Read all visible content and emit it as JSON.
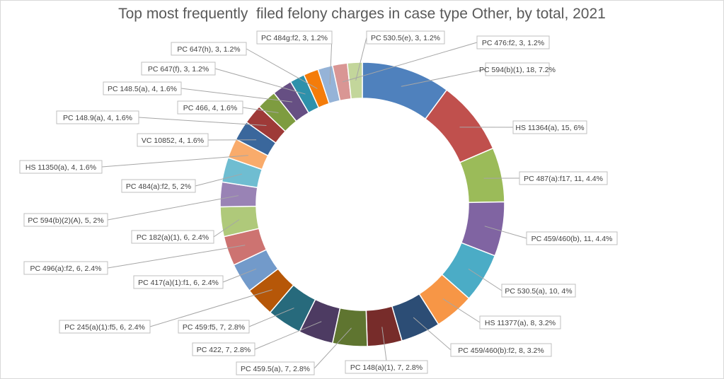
{
  "chart_data": {
    "type": "pie",
    "subtype": "doughnut",
    "title": "Top most frequently  filed felony charges in case type Other, by total, 2021",
    "slices": [
      {
        "label": "PC  594(b)(1), 18, 7.2%",
        "value": 18,
        "color": "#4f81bd"
      },
      {
        "label": "HS  11364(a), 15, 6%",
        "value": 15,
        "color": "#c0504d"
      },
      {
        "label": "PC  487(a):f17, 11, 4.4%",
        "value": 11,
        "color": "#9bbb59"
      },
      {
        "label": "PC  459/460(b), 11, 4.4%",
        "value": 11,
        "color": "#8064a2"
      },
      {
        "label": "PC  530.5(a), 10, 4%",
        "value": 10,
        "color": "#4bacc6"
      },
      {
        "label": "HS  11377(a), 8, 3.2%",
        "value": 8,
        "color": "#f79646"
      },
      {
        "label": "PC  459/460(b):f2, 8, 3.2%",
        "value": 8,
        "color": "#2c4d75"
      },
      {
        "label": "PC  148(a)(1), 7, 2.8%",
        "value": 7,
        "color": "#772c2a"
      },
      {
        "label": "PC  459.5(a), 7, 2.8%",
        "value": 7,
        "color": "#5f7530"
      },
      {
        "label": "PC  422, 7, 2.8%",
        "value": 7,
        "color": "#4d3b62"
      },
      {
        "label": "PC  459:f5, 7, 2.8%",
        "value": 7,
        "color": "#276a7c"
      },
      {
        "label": "PC  245(a)(1):f5, 6, 2.4%",
        "value": 6,
        "color": "#b65708"
      },
      {
        "label": "PC  417(a)(1):f1, 6, 2.4%",
        "value": 6,
        "color": "#729aca"
      },
      {
        "label": "PC  496(a):f2, 6, 2.4%",
        "value": 6,
        "color": "#cd7371"
      },
      {
        "label": "PC  182(a)(1), 6, 2.4%",
        "value": 6,
        "color": "#afc97a"
      },
      {
        "label": "PC  594(b)(2)(A), 5, 2%",
        "value": 5,
        "color": "#9983b5"
      },
      {
        "label": "PC  484(a):f2, 5, 2%",
        "value": 5,
        "color": "#6fbdd1"
      },
      {
        "label": "HS  11350(a), 4, 1.6%",
        "value": 4,
        "color": "#f9ab6b"
      },
      {
        "label": "VC  10852, 4, 1.6%",
        "value": 4,
        "color": "#3a679c"
      },
      {
        "label": "PC  148.9(a), 4, 1.6%",
        "value": 4,
        "color": "#9e3a38"
      },
      {
        "label": "PC  466, 4, 1.6%",
        "value": 4,
        "color": "#7e9c40"
      },
      {
        "label": "PC  148.5(a), 4, 1.6%",
        "value": 4,
        "color": "#664f83"
      },
      {
        "label": "PC  647(f), 3, 1.2%",
        "value": 3,
        "color": "#2e91ab"
      },
      {
        "label": "PC  647(h), 3, 1.2%",
        "value": 3,
        "color": "#f47c0a"
      },
      {
        "label": "PC  484g:f2, 3, 1.2%",
        "value": 3,
        "color": "#95b3d7"
      },
      {
        "label": "PC  476:f2, 3, 1.2%",
        "value": 3,
        "color": "#d99694"
      },
      {
        "label": "PC  530.5(e), 3, 1.2%",
        "value": 3,
        "color": "#c3d69b"
      }
    ],
    "total": 250,
    "legend": "none",
    "data_labels": "callouts with leader lines"
  }
}
